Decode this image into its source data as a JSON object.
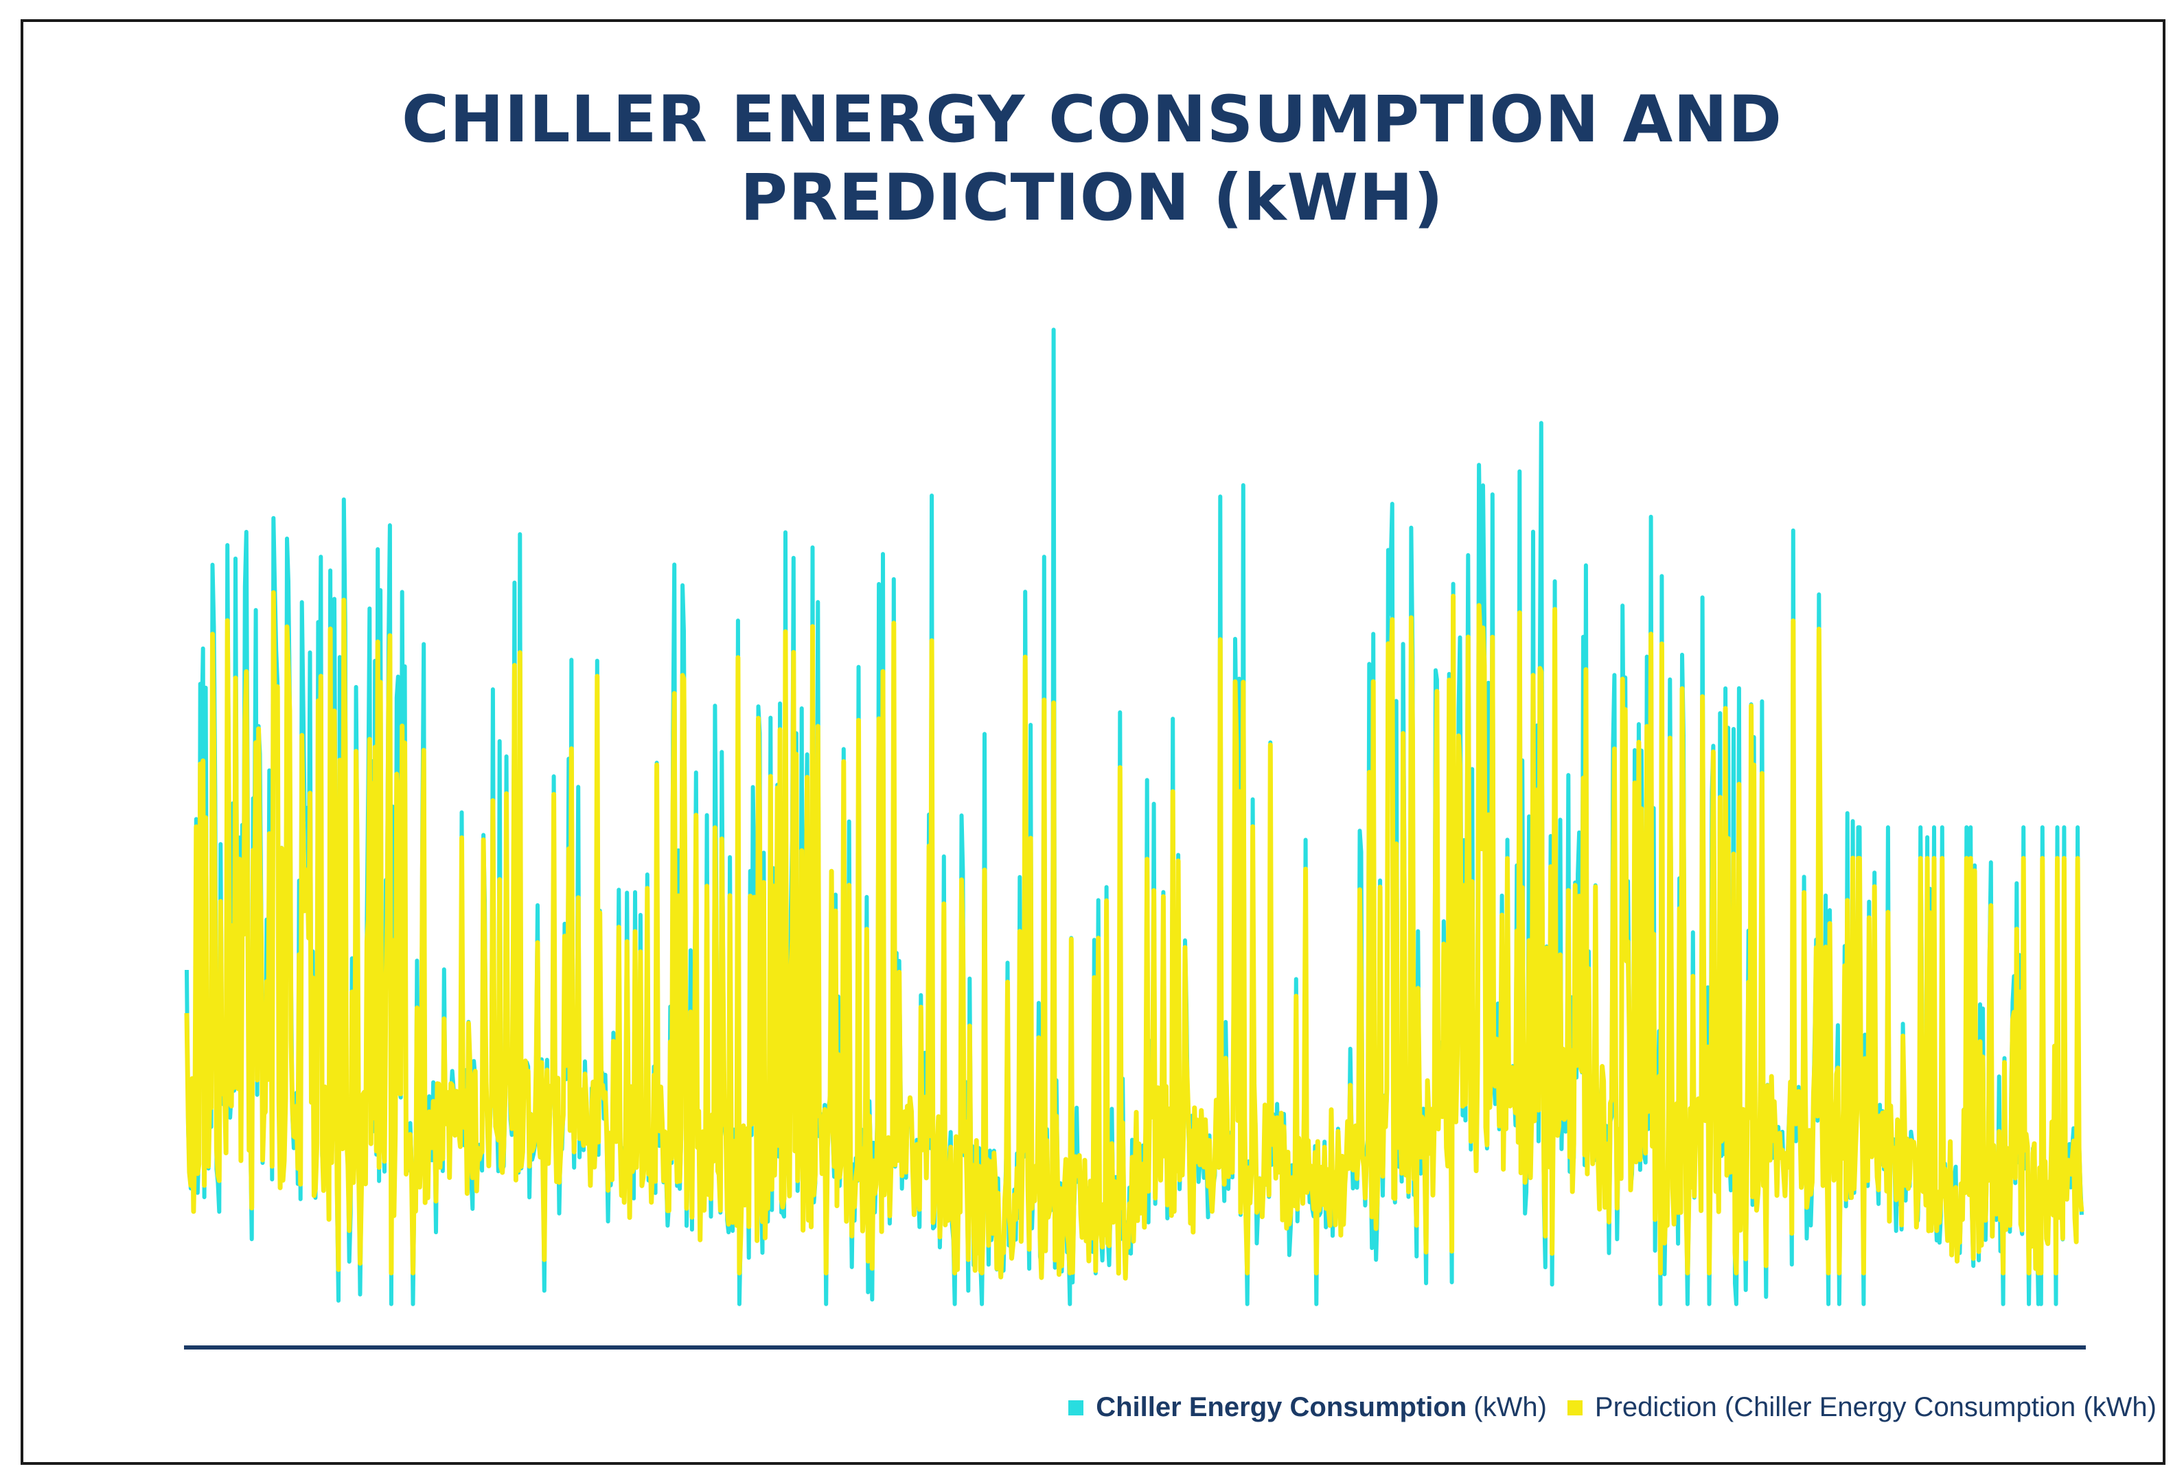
{
  "chart_data": {
    "type": "line",
    "title": "CHILLER ENERGY CONSUMPTION AND PREDICTION (kWH)",
    "title_lines": [
      "CHILLER ENERGY CONSUMPTION AND",
      "PREDICTION (kWH)"
    ],
    "xlabel": "",
    "ylabel": "",
    "grid": false,
    "legend_position": "bottom-right",
    "ylim": [
      0,
      100
    ],
    "n_points": 1400,
    "series": [
      {
        "name": "Chiller Energy Consumption (kWh)",
        "legend_bold": "Chiller Energy Consumption",
        "legend_suffix": "(kWh)",
        "color": "#29dde0"
      },
      {
        "name": "Prediction (Chiller Energy Consumption (kWh)",
        "legend_bold": "",
        "legend_suffix": "Prediction (Chiller Energy Consumption (kWh)",
        "color": "#f5ea14"
      }
    ],
    "notable_points": [
      {
        "index": 640,
        "actual": 96,
        "predicted": 60
      },
      {
        "index": 1000,
        "actual": 87,
        "predicted": 63
      },
      {
        "index": 550,
        "actual": 80,
        "predicted": 66
      },
      {
        "index": 780,
        "actual": 81,
        "predicted": 62
      }
    ]
  },
  "colors": {
    "title": "#1b3a66",
    "axis": "#1b3a66",
    "actual": "#29dde0",
    "prediction": "#f5ea14"
  }
}
